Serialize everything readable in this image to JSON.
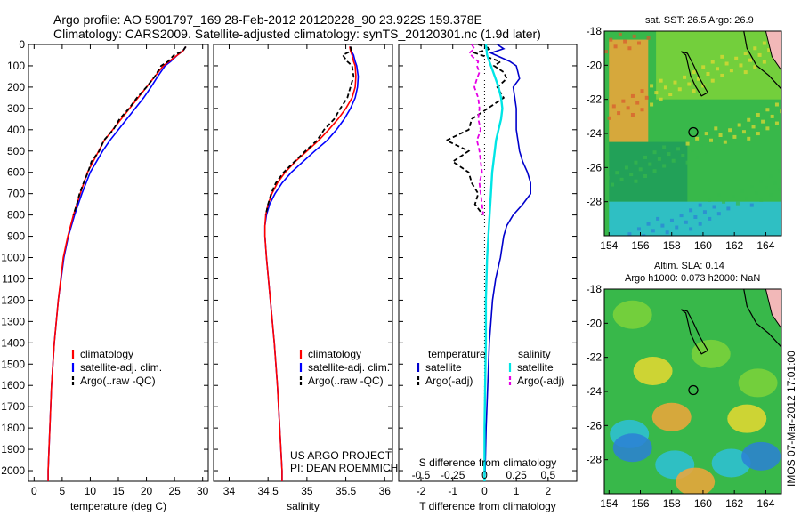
{
  "header": {
    "line1": "Argo profile: AO 5901797_169 28-Feb-2012 20120228_90 23.922S 159.378E",
    "line2": "Climatology: CARS2009. Satellite-adjusted climatology: synTS_20120301.nc (1.9d later)"
  },
  "sst_title": "sat. SST: 26.5 Argo: 26.9",
  "sla_title1": "Altim. SLA: 0.14",
  "sla_title2": "Argo h1000: 0.073 h2000: NaN",
  "credit": "US ARGO PROJECT",
  "pi": "PI: DEAN ROEMMICH",
  "watermark": "IMOS 07-Mar-2012 17:01:00",
  "colors": {
    "climatology": "#ff0000",
    "satellite": "#0000ff",
    "argo": "#000000",
    "t_satellite": "#0000cc",
    "s_satellite": "#00e5e5",
    "s_argo": "#e500e5",
    "land": "#f2b8b8"
  },
  "chart_data": [
    {
      "id": "temperature",
      "type": "line",
      "xlabel": "temperature (deg C)",
      "xlim": [
        -1,
        31
      ],
      "xticks": [
        0,
        5,
        10,
        15,
        20,
        25,
        30
      ],
      "ylim": [
        2050,
        0
      ],
      "yticks": [
        0,
        100,
        200,
        300,
        400,
        500,
        600,
        700,
        800,
        900,
        1000,
        1100,
        1200,
        1300,
        1400,
        1500,
        1600,
        1700,
        1800,
        1900,
        2000
      ],
      "y_reversed": true,
      "legend": [
        "climatology",
        "satellite-adj. clim.",
        "Argo(..raw -QC)"
      ],
      "series": [
        {
          "name": "climatology",
          "depth": [
            10,
            30,
            50,
            80,
            100,
            150,
            200,
            250,
            300,
            350,
            400,
            450,
            500,
            600,
            700,
            800,
            900,
            1000,
            1200,
            1400,
            1600,
            1800,
            2000,
            2050
          ],
          "values": [
            27,
            26.5,
            25.5,
            24,
            23,
            21.5,
            20,
            18.5,
            17,
            15.5,
            14,
            12.5,
            11.5,
            9.5,
            8.2,
            7,
            6,
            5.2,
            4.3,
            3.6,
            3.1,
            2.8,
            2.5,
            2.5
          ]
        },
        {
          "name": "satellite-adj. clim.",
          "depth": [
            10,
            30,
            50,
            80,
            100,
            150,
            200,
            250,
            300,
            350,
            400,
            450,
            500,
            600,
            700,
            800,
            900,
            1000,
            1200,
            1400,
            1600,
            1800,
            2000,
            2050
          ],
          "values": [
            27,
            26.5,
            25.5,
            24.3,
            23.3,
            22,
            20.8,
            19.5,
            18,
            16.5,
            15,
            13.5,
            12.2,
            10,
            8.5,
            7.2,
            6.1,
            5.3,
            4.3,
            3.6,
            3.1,
            2.8,
            2.5,
            2.5
          ]
        },
        {
          "name": "Argo(..raw -QC)",
          "depth": [
            10,
            30,
            50,
            80,
            100,
            150,
            200,
            250,
            300,
            350,
            400,
            450,
            500,
            550,
            600,
            650,
            700,
            750,
            800
          ],
          "values": [
            27,
            26.5,
            24.9,
            23.8,
            22.6,
            21.5,
            20,
            18.3,
            16.9,
            15.2,
            14.1,
            12.4,
            11.6,
            10.2,
            9.6,
            8.8,
            8.1,
            7.6,
            7
          ]
        }
      ]
    },
    {
      "id": "salinity",
      "type": "line",
      "xlabel": "salinity",
      "xlim": [
        33.8,
        36.1
      ],
      "xticks": [
        34,
        34.5,
        35,
        35.5,
        36
      ],
      "ylim": [
        2050,
        0
      ],
      "y_reversed": true,
      "legend": [
        "climatology",
        "satellite-adj. clim.",
        "Argo(..raw -QC)"
      ],
      "series": [
        {
          "name": "climatology",
          "depth": [
            10,
            30,
            50,
            80,
            100,
            150,
            200,
            250,
            300,
            350,
            400,
            450,
            500,
            550,
            600,
            650,
            700,
            750,
            800,
            850,
            900,
            1000,
            1200,
            1400,
            1600,
            1800,
            2000,
            2050
          ],
          "values": [
            35.55,
            35.56,
            35.58,
            35.6,
            35.62,
            35.63,
            35.62,
            35.58,
            35.5,
            35.4,
            35.28,
            35.15,
            35,
            34.85,
            34.72,
            34.62,
            34.55,
            34.5,
            34.47,
            34.46,
            34.46,
            34.48,
            34.53,
            34.58,
            34.62,
            34.65,
            34.68,
            34.68
          ]
        },
        {
          "name": "satellite-adj. clim.",
          "depth": [
            10,
            30,
            50,
            80,
            100,
            150,
            200,
            250,
            300,
            350,
            400,
            450,
            500,
            550,
            600,
            650,
            700,
            750,
            800,
            850,
            900,
            1000,
            1200,
            1400,
            1600,
            1800,
            2000,
            2050
          ],
          "values": [
            35.55,
            35.57,
            35.6,
            35.62,
            35.64,
            35.66,
            35.65,
            35.62,
            35.56,
            35.48,
            35.38,
            35.26,
            35.1,
            34.95,
            34.8,
            34.68,
            34.59,
            34.52,
            34.48,
            34.46,
            34.46,
            34.48,
            34.53,
            34.58,
            34.62,
            34.65,
            34.68,
            34.68
          ]
        },
        {
          "name": "Argo(..raw -QC)",
          "depth": [
            10,
            30,
            50,
            80,
            100,
            150,
            200,
            250,
            300,
            350,
            400,
            450,
            500,
            550,
            600,
            650,
            700,
            750,
            800
          ],
          "values": [
            35.56,
            35.57,
            35.46,
            35.52,
            35.58,
            35.6,
            35.56,
            35.52,
            35.43,
            35.35,
            35.22,
            35.13,
            34.98,
            34.84,
            34.7,
            34.6,
            34.54,
            34.5,
            34.47
          ]
        }
      ]
    },
    {
      "id": "differences",
      "type": "line",
      "xlabel": "T difference from climatology",
      "x2label": "S difference from climatology",
      "xlim": [
        -2.7,
        2.9
      ],
      "xticks": [
        -2,
        -1,
        0,
        1,
        2
      ],
      "s_xlim": [
        -0.675,
        0.725
      ],
      "s_xticks": [
        -0.5,
        -0.25,
        0,
        0.25,
        0.5
      ],
      "s_xticklabels": [
        "-0.5",
        "-0.25",
        "0",
        "0.25",
        "0.5"
      ],
      "ylim": [
        2050,
        0
      ],
      "y_reversed": true,
      "legend": [
        "temperature",
        "satellite",
        "Argo(-adj)",
        "salinity",
        "satellite",
        "Argo(-adj)"
      ],
      "series": [
        {
          "name": "temperature satellite",
          "depth": [
            0,
            20,
            40,
            60,
            80,
            100,
            130,
            160,
            200,
            250,
            300,
            350,
            400,
            450,
            500,
            550,
            600,
            650,
            700,
            750,
            800,
            850,
            900,
            1000,
            1100,
            1200,
            1400,
            1600,
            1800,
            2000,
            2050
          ],
          "values": [
            0.4,
            0.6,
            0.2,
            0.5,
            0.8,
            1.0,
            1.05,
            1.1,
            0.9,
            0.95,
            1.0,
            1.0,
            1.0,
            1.05,
            1.1,
            1.2,
            1.35,
            1.45,
            1.45,
            1.2,
            0.9,
            0.7,
            0.6,
            0.5,
            0.35,
            0.25,
            0.15,
            0.1,
            0.05,
            0.02,
            0.0
          ]
        },
        {
          "name": "temperature Argo(-adj)",
          "depth": [
            0,
            20,
            40,
            60,
            80,
            100,
            130,
            160,
            200,
            250,
            300,
            350,
            400,
            450,
            500,
            550,
            600,
            650,
            700,
            750,
            800
          ],
          "values": [
            -0.2,
            0.2,
            -0.3,
            0.1,
            0.5,
            0.3,
            0.6,
            0.7,
            0.4,
            0.6,
            0.1,
            -0.4,
            -0.5,
            -1.2,
            -0.5,
            -1.0,
            -0.5,
            -0.4,
            -0.2,
            -0.3,
            -0.05
          ]
        },
        {
          "name": "salinity satellite",
          "depth": [
            0,
            50,
            100,
            150,
            200,
            250,
            300,
            350,
            400,
            450,
            500,
            600,
            700,
            800,
            900,
            1000,
            1200,
            1400,
            1600,
            1800,
            2000,
            2050
          ],
          "values": [
            0.01,
            0.02,
            0.05,
            0.08,
            0.11,
            0.13,
            0.14,
            0.13,
            0.11,
            0.09,
            0.08,
            0.06,
            0.05,
            0.04,
            0.03,
            0.02,
            0.01,
            0.01,
            0.005,
            0,
            0,
            0
          ]
        },
        {
          "name": "salinity Argo(-adj)",
          "depth": [
            0,
            20,
            40,
            60,
            80,
            100,
            130,
            160,
            200,
            250,
            300,
            350,
            400,
            450,
            500,
            550,
            600,
            650,
            700,
            750,
            800
          ],
          "values": [
            -0.1,
            -0.08,
            -0.12,
            -0.09,
            -0.05,
            -0.06,
            -0.04,
            -0.06,
            -0.08,
            -0.05,
            -0.04,
            -0.05,
            -0.03,
            -0.06,
            -0.04,
            -0.03,
            -0.02,
            -0.04,
            -0.03,
            -0.02,
            -0.01
          ]
        }
      ]
    },
    {
      "id": "sst_map",
      "type": "heatmap",
      "xlim": [
        153.7,
        165
      ],
      "xticks": [
        154,
        156,
        158,
        160,
        162,
        164
      ],
      "ylim": [
        -30,
        -18
      ],
      "yticks": [
        -18,
        -20,
        -22,
        -24,
        -26,
        -28
      ],
      "marker": {
        "lon": 159.378,
        "lat": -23.922
      },
      "regions": [
        {
          "lon": [
            154,
            159
          ],
          "lat": [
            -28,
            -24.5
          ],
          "level": "dark green"
        },
        {
          "lon": [
            154,
            165
          ],
          "lat": [
            -30,
            -28
          ],
          "level": "cyan"
        },
        {
          "lon": [
            154,
            156.5
          ],
          "lat": [
            -24.5,
            -18.5
          ],
          "level": "orange"
        },
        {
          "lon": [
            157,
            165
          ],
          "lat": [
            -22,
            -18
          ],
          "level": "light green"
        }
      ]
    },
    {
      "id": "sla_map",
      "type": "heatmap",
      "xlim": [
        153.7,
        165
      ],
      "xticks": [
        154,
        156,
        158,
        160,
        162,
        164
      ],
      "ylim": [
        -30,
        -18
      ],
      "yticks": [
        -18,
        -20,
        -22,
        -24,
        -26,
        -28
      ],
      "marker": {
        "lon": 159.378,
        "lat": -23.922
      },
      "blobs": [
        {
          "lon": 155.5,
          "lat": -19.5,
          "level": "light green"
        },
        {
          "lon": 160.5,
          "lat": -21.8,
          "level": "light green"
        },
        {
          "lon": 156.8,
          "lat": -22.8,
          "level": "yellow"
        },
        {
          "lon": 155.3,
          "lat": -26.5,
          "level": "cyan"
        },
        {
          "lon": 155.5,
          "lat": -27.3,
          "level": "blue"
        },
        {
          "lon": 158.2,
          "lat": -28.3,
          "level": "cyan"
        },
        {
          "lon": 161.8,
          "lat": -28.2,
          "level": "cyan"
        },
        {
          "lon": 163.7,
          "lat": -27.8,
          "level": "blue"
        },
        {
          "lon": 162.8,
          "lat": -25.6,
          "level": "yellow"
        },
        {
          "lon": 158,
          "lat": -25.5,
          "level": "orange"
        },
        {
          "lon": 163.5,
          "lat": -23.5,
          "level": "light green"
        },
        {
          "lon": 159.5,
          "lat": -29.3,
          "level": "orange"
        }
      ]
    }
  ]
}
